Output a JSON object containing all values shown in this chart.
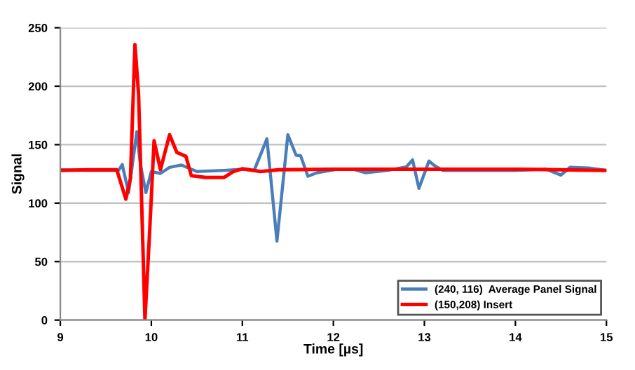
{
  "chart_data": {
    "type": "line",
    "xlabel": "Time [µs]",
    "ylabel": "Signal",
    "xlim": [
      9,
      15
    ],
    "xticks": [
      9,
      10,
      11,
      12,
      13,
      14,
      15
    ],
    "ylim": [
      0,
      250
    ],
    "yticks": [
      0,
      50,
      100,
      150,
      200,
      250
    ],
    "grid": "y",
    "legend": "bottom right",
    "line_style": "solid",
    "marker": "none",
    "series": [
      {
        "name": "(240, 116)  Average Panel Signal",
        "color": "#4a7ebb",
        "x": [
          9,
          9.3,
          9.64,
          9.68,
          9.75,
          9.84,
          9.88,
          9.94,
          10.0,
          10.1,
          10.2,
          10.33,
          10.5,
          10.8,
          11.0,
          11.13,
          11.27,
          11.38,
          11.5,
          11.59,
          11.64,
          11.72,
          11.82,
          12.03,
          12.23,
          12.35,
          12.6,
          12.8,
          12.87,
          12.94,
          13.05,
          13.1,
          13.2,
          13.6,
          14.0,
          14.34,
          14.5,
          14.6,
          14.8,
          15.0
        ],
        "values": [
          128.6,
          128,
          128,
          133,
          109,
          161,
          133,
          109,
          127,
          125.4,
          130.6,
          132.6,
          127,
          128,
          129,
          128,
          155,
          67.5,
          158.5,
          141,
          140.6,
          123,
          126,
          128.8,
          128.8,
          126,
          128,
          131,
          137,
          112.6,
          136,
          132.7,
          128,
          128,
          128,
          129,
          124,
          130.6,
          130,
          128
        ]
      },
      {
        "name": "(150,208) Insert",
        "color": "#ff0000",
        "x": [
          9,
          9.3,
          9.62,
          9.72,
          9.77,
          9.82,
          9.86,
          9.93,
          9.98,
          10.03,
          10.1,
          10.2,
          10.28,
          10.38,
          10.44,
          10.6,
          10.8,
          10.9,
          11.0,
          11.2,
          11.4,
          12.0,
          13.0,
          14.0,
          15.0
        ],
        "values": [
          128,
          128.5,
          128.6,
          103.4,
          121,
          235.6,
          193,
          0,
          73.5,
          153.4,
          128.6,
          158.5,
          143.4,
          140,
          123.4,
          122,
          122,
          127,
          129.4,
          127,
          128.6,
          129,
          129,
          129,
          128
        ]
      }
    ]
  }
}
